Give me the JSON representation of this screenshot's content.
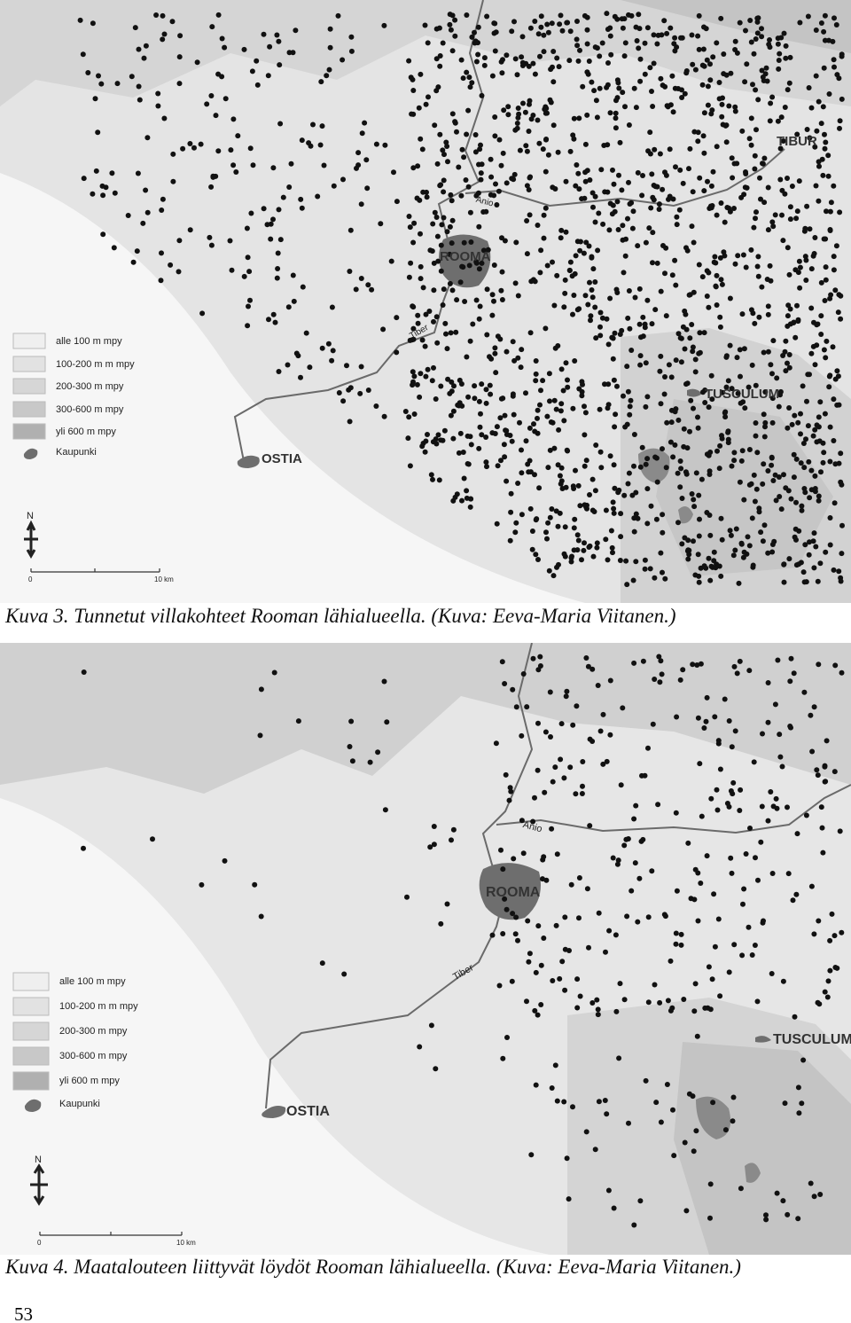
{
  "maps": [
    {
      "labels": {
        "tibur": "TIBUR",
        "anio": "Anio",
        "rooma": "ROOMA",
        "tiber": "Tiber",
        "tusculum": "TUSCULUM",
        "ostia": "OSTIA"
      },
      "legend": [
        "alle 100 m mpy",
        "100-200 m m mpy",
        "200-300 m mpy",
        "300-600 m mpy",
        "yli 600 m mpy",
        "Kaupunki"
      ],
      "north": "N",
      "scale": [
        "0",
        "10 km"
      ],
      "caption": "Kuva 3. Tunnetut villakohteet Rooman lähialueella. (Kuva: Eeva-Maria Viitanen.)"
    },
    {
      "labels": {
        "anio": "Anio",
        "rooma": "ROOMA",
        "tiber": "Tiber",
        "tusculum": "TUSCULUM",
        "ostia": "OSTIA"
      },
      "legend": [
        "alle 100 m mpy",
        "100-200 m m mpy",
        "200-300 m mpy",
        "300-600 m mpy",
        "yli 600 m mpy",
        "Kaupunki"
      ],
      "north": "N",
      "scale": [
        "0",
        "10 km"
      ],
      "caption": "Kuva 4. Maatalouteen liittyvät löydöt Rooman lähialueella. (Kuva: Eeva-Maria Viitanen.)"
    }
  ],
  "page_number": "53"
}
